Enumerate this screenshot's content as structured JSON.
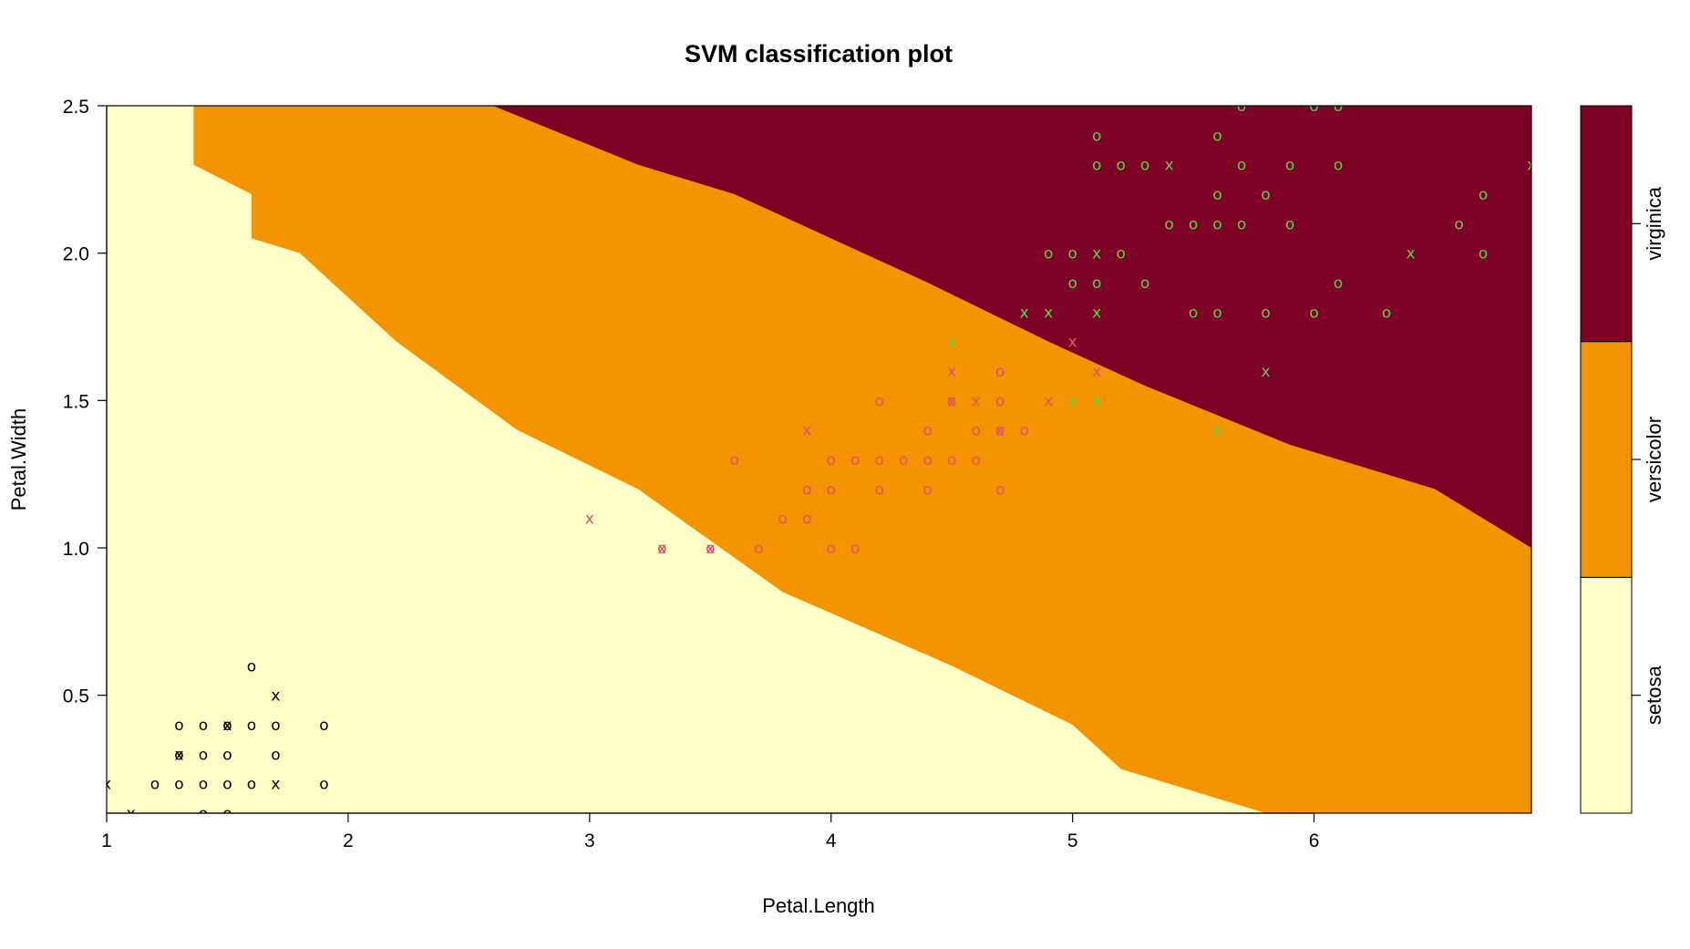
{
  "chart_data": {
    "type": "scatter",
    "title": "SVM classification plot",
    "xlabel": "Petal.Length",
    "ylabel": "Petal.Width",
    "xlim": [
      1,
      6.9
    ],
    "ylim": [
      0.1,
      2.5
    ],
    "x_ticks": [
      1,
      2,
      3,
      4,
      5,
      6
    ],
    "x_tick_labels": [
      "1",
      "2",
      "3",
      "4",
      "5",
      "6"
    ],
    "y_ticks": [
      0.5,
      1.0,
      1.5,
      2.0,
      2.5
    ],
    "y_tick_labels": [
      "0.5",
      "1.0",
      "1.5",
      "2.0",
      "2.5"
    ],
    "grid": false,
    "legend_position": "right",
    "classes": [
      {
        "name": "setosa",
        "region_color": "#FFFFC8",
        "point_color": "#000000"
      },
      {
        "name": "versicolor",
        "region_color": "#F39300",
        "point_color": "#DF536B"
      },
      {
        "name": "virginica",
        "region_color": "#7D0025",
        "point_color": "#61D04F"
      }
    ],
    "boundaries": {
      "setosa_versicolor": [
        [
          1.36,
          2.5
        ],
        [
          1.36,
          2.3
        ],
        [
          1.6,
          2.2
        ],
        [
          1.6,
          2.05
        ],
        [
          1.8,
          2.0
        ],
        [
          2.2,
          1.7
        ],
        [
          2.7,
          1.4
        ],
        [
          3.2,
          1.2
        ],
        [
          3.8,
          0.85
        ],
        [
          4.5,
          0.6
        ],
        [
          5.0,
          0.4
        ],
        [
          5.2,
          0.25
        ],
        [
          5.6,
          0.15
        ],
        [
          5.8,
          0.1
        ]
      ],
      "versicolor_virginica": [
        [
          2.6,
          2.5
        ],
        [
          3.2,
          2.3
        ],
        [
          3.6,
          2.2
        ],
        [
          4.0,
          2.05
        ],
        [
          4.4,
          1.9
        ],
        [
          4.9,
          1.7
        ],
        [
          5.3,
          1.55
        ],
        [
          5.9,
          1.35
        ],
        [
          6.5,
          1.2
        ],
        [
          6.9,
          1.0
        ]
      ]
    },
    "series": [
      {
        "name": "setosa",
        "points": [
          {
            "x": 1.0,
            "y": 0.2,
            "m": "x"
          },
          {
            "x": 1.1,
            "y": 0.1,
            "m": "x"
          },
          {
            "x": 1.2,
            "y": 0.2,
            "m": "o"
          },
          {
            "x": 1.3,
            "y": 0.2,
            "m": "o"
          },
          {
            "x": 1.3,
            "y": 0.3,
            "m": "o"
          },
          {
            "x": 1.3,
            "y": 0.3,
            "m": "x"
          },
          {
            "x": 1.3,
            "y": 0.4,
            "m": "o"
          },
          {
            "x": 1.4,
            "y": 0.1,
            "m": "o"
          },
          {
            "x": 1.4,
            "y": 0.2,
            "m": "o"
          },
          {
            "x": 1.4,
            "y": 0.3,
            "m": "o"
          },
          {
            "x": 1.4,
            "y": 0.4,
            "m": "o"
          },
          {
            "x": 1.5,
            "y": 0.1,
            "m": "o"
          },
          {
            "x": 1.5,
            "y": 0.2,
            "m": "o"
          },
          {
            "x": 1.5,
            "y": 0.3,
            "m": "o"
          },
          {
            "x": 1.5,
            "y": 0.4,
            "m": "o"
          },
          {
            "x": 1.5,
            "y": 0.4,
            "m": "x"
          },
          {
            "x": 1.6,
            "y": 0.2,
            "m": "o"
          },
          {
            "x": 1.6,
            "y": 0.4,
            "m": "o"
          },
          {
            "x": 1.6,
            "y": 0.6,
            "m": "o"
          },
          {
            "x": 1.7,
            "y": 0.2,
            "m": "x"
          },
          {
            "x": 1.7,
            "y": 0.3,
            "m": "o"
          },
          {
            "x": 1.7,
            "y": 0.4,
            "m": "o"
          },
          {
            "x": 1.7,
            "y": 0.5,
            "m": "x"
          },
          {
            "x": 1.9,
            "y": 0.2,
            "m": "o"
          },
          {
            "x": 1.9,
            "y": 0.4,
            "m": "o"
          }
        ]
      },
      {
        "name": "versicolor",
        "points": [
          {
            "x": 3.0,
            "y": 1.1,
            "m": "x"
          },
          {
            "x": 3.3,
            "y": 1.0,
            "m": "o"
          },
          {
            "x": 3.3,
            "y": 1.0,
            "m": "x"
          },
          {
            "x": 3.5,
            "y": 1.0,
            "m": "o"
          },
          {
            "x": 3.5,
            "y": 1.0,
            "m": "x"
          },
          {
            "x": 3.6,
            "y": 1.3,
            "m": "o"
          },
          {
            "x": 3.7,
            "y": 1.0,
            "m": "o"
          },
          {
            "x": 3.8,
            "y": 1.1,
            "m": "o"
          },
          {
            "x": 3.9,
            "y": 1.1,
            "m": "o"
          },
          {
            "x": 3.9,
            "y": 1.2,
            "m": "o"
          },
          {
            "x": 3.9,
            "y": 1.4,
            "m": "x"
          },
          {
            "x": 4.0,
            "y": 1.0,
            "m": "o"
          },
          {
            "x": 4.0,
            "y": 1.2,
            "m": "o"
          },
          {
            "x": 4.0,
            "y": 1.3,
            "m": "o"
          },
          {
            "x": 4.1,
            "y": 1.0,
            "m": "o"
          },
          {
            "x": 4.1,
            "y": 1.3,
            "m": "o"
          },
          {
            "x": 4.2,
            "y": 1.2,
            "m": "o"
          },
          {
            "x": 4.2,
            "y": 1.3,
            "m": "o"
          },
          {
            "x": 4.2,
            "y": 1.5,
            "m": "o"
          },
          {
            "x": 4.3,
            "y": 1.3,
            "m": "o"
          },
          {
            "x": 4.4,
            "y": 1.2,
            "m": "o"
          },
          {
            "x": 4.4,
            "y": 1.3,
            "m": "o"
          },
          {
            "x": 4.4,
            "y": 1.4,
            "m": "o"
          },
          {
            "x": 4.5,
            "y": 1.3,
            "m": "o"
          },
          {
            "x": 4.5,
            "y": 1.5,
            "m": "o"
          },
          {
            "x": 4.5,
            "y": 1.5,
            "m": "x"
          },
          {
            "x": 4.5,
            "y": 1.6,
            "m": "x"
          },
          {
            "x": 4.6,
            "y": 1.3,
            "m": "o"
          },
          {
            "x": 4.6,
            "y": 1.4,
            "m": "o"
          },
          {
            "x": 4.6,
            "y": 1.5,
            "m": "x"
          },
          {
            "x": 4.7,
            "y": 1.2,
            "m": "o"
          },
          {
            "x": 4.7,
            "y": 1.4,
            "m": "o"
          },
          {
            "x": 4.7,
            "y": 1.4,
            "m": "x"
          },
          {
            "x": 4.7,
            "y": 1.5,
            "m": "o"
          },
          {
            "x": 4.7,
            "y": 1.6,
            "m": "o"
          },
          {
            "x": 4.8,
            "y": 1.4,
            "m": "o"
          },
          {
            "x": 4.9,
            "y": 1.5,
            "m": "x"
          },
          {
            "x": 5.0,
            "y": 1.7,
            "m": "x"
          },
          {
            "x": 5.1,
            "y": 1.6,
            "m": "x"
          }
        ]
      },
      {
        "name": "virginica",
        "points": [
          {
            "x": 4.5,
            "y": 1.7,
            "m": "x"
          },
          {
            "x": 4.8,
            "y": 1.8,
            "m": "x"
          },
          {
            "x": 4.9,
            "y": 1.8,
            "m": "x"
          },
          {
            "x": 4.9,
            "y": 2.0,
            "m": "o"
          },
          {
            "x": 5.0,
            "y": 1.5,
            "m": "x"
          },
          {
            "x": 5.0,
            "y": 1.9,
            "m": "o"
          },
          {
            "x": 5.0,
            "y": 2.0,
            "m": "o"
          },
          {
            "x": 5.1,
            "y": 1.5,
            "m": "x"
          },
          {
            "x": 5.1,
            "y": 1.8,
            "m": "x"
          },
          {
            "x": 5.1,
            "y": 1.9,
            "m": "o"
          },
          {
            "x": 5.1,
            "y": 2.0,
            "m": "x"
          },
          {
            "x": 5.1,
            "y": 2.3,
            "m": "o"
          },
          {
            "x": 5.1,
            "y": 2.4,
            "m": "o"
          },
          {
            "x": 5.2,
            "y": 2.0,
            "m": "o"
          },
          {
            "x": 5.2,
            "y": 2.3,
            "m": "o"
          },
          {
            "x": 5.3,
            "y": 1.9,
            "m": "o"
          },
          {
            "x": 5.3,
            "y": 2.3,
            "m": "o"
          },
          {
            "x": 5.4,
            "y": 2.1,
            "m": "o"
          },
          {
            "x": 5.4,
            "y": 2.3,
            "m": "x"
          },
          {
            "x": 5.5,
            "y": 1.8,
            "m": "o"
          },
          {
            "x": 5.5,
            "y": 2.1,
            "m": "o"
          },
          {
            "x": 5.6,
            "y": 1.4,
            "m": "x"
          },
          {
            "x": 5.6,
            "y": 1.8,
            "m": "o"
          },
          {
            "x": 5.6,
            "y": 2.1,
            "m": "o"
          },
          {
            "x": 5.6,
            "y": 2.2,
            "m": "o"
          },
          {
            "x": 5.6,
            "y": 2.4,
            "m": "o"
          },
          {
            "x": 5.7,
            "y": 2.1,
            "m": "o"
          },
          {
            "x": 5.7,
            "y": 2.3,
            "m": "o"
          },
          {
            "x": 5.7,
            "y": 2.5,
            "m": "o"
          },
          {
            "x": 5.8,
            "y": 1.6,
            "m": "x"
          },
          {
            "x": 5.8,
            "y": 1.8,
            "m": "o"
          },
          {
            "x": 5.8,
            "y": 2.2,
            "m": "o"
          },
          {
            "x": 5.9,
            "y": 2.1,
            "m": "o"
          },
          {
            "x": 5.9,
            "y": 2.3,
            "m": "o"
          },
          {
            "x": 6.0,
            "y": 1.8,
            "m": "o"
          },
          {
            "x": 6.0,
            "y": 2.5,
            "m": "o"
          },
          {
            "x": 6.1,
            "y": 1.9,
            "m": "o"
          },
          {
            "x": 6.1,
            "y": 2.3,
            "m": "o"
          },
          {
            "x": 6.1,
            "y": 2.5,
            "m": "o"
          },
          {
            "x": 6.3,
            "y": 1.8,
            "m": "o"
          },
          {
            "x": 6.4,
            "y": 2.0,
            "m": "x"
          },
          {
            "x": 6.6,
            "y": 2.1,
            "m": "o"
          },
          {
            "x": 6.7,
            "y": 2.0,
            "m": "o"
          },
          {
            "x": 6.7,
            "y": 2.2,
            "m": "o"
          },
          {
            "x": 6.9,
            "y": 2.3,
            "m": "x"
          }
        ]
      }
    ]
  }
}
